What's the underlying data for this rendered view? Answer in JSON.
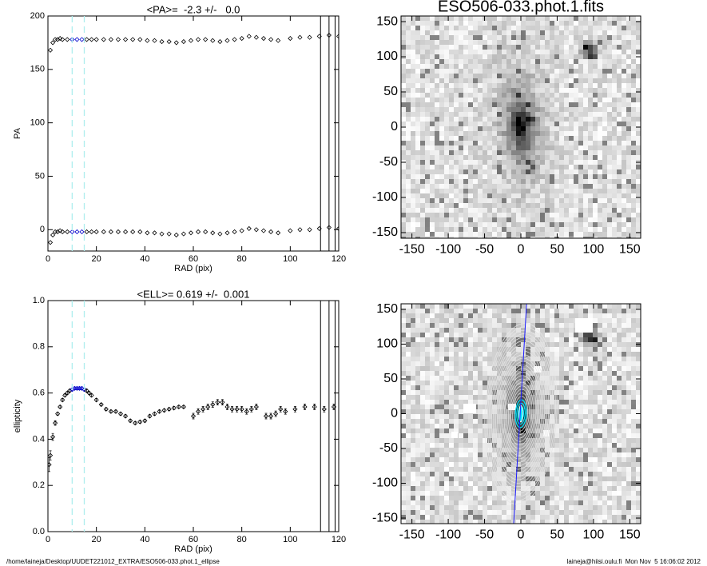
{
  "chart_data": [
    {
      "type": "scatter",
      "title": "<PA>=  -2.3 +/-   0.0",
      "xlabel": "RAD (pix)",
      "ylabel": "PA",
      "xlim": [
        0,
        120
      ],
      "ylim": [
        -20,
        200
      ],
      "xticks": [
        0,
        20,
        40,
        60,
        80,
        100,
        120
      ],
      "yticks": [
        0,
        50,
        100,
        150,
        200
      ],
      "x": [
        1,
        2,
        3,
        4,
        5,
        6,
        8,
        10,
        12,
        14,
        16,
        18,
        20,
        23,
        26,
        29,
        32,
        35,
        38,
        41,
        44,
        47,
        50,
        53,
        56,
        59,
        62,
        65,
        68,
        71,
        74,
        77,
        80,
        83,
        86,
        89,
        92,
        95,
        100,
        104,
        108,
        112,
        116,
        120
      ],
      "series": [
        {
          "color": "#000000",
          "values": [
            168,
            175,
            178,
            178,
            179,
            178,
            178,
            178,
            178,
            178,
            178,
            178,
            178,
            178,
            178,
            178,
            178,
            178,
            178,
            177,
            177,
            176,
            176,
            175,
            176,
            177,
            178,
            178,
            177,
            176,
            177,
            178,
            179,
            181,
            180,
            179,
            178,
            177,
            179,
            180,
            180,
            181,
            182,
            181
          ]
        },
        {
          "color": "#000000",
          "values": [
            -12,
            -5,
            -2,
            -2,
            -1,
            -2,
            -2,
            -2,
            -2,
            -2,
            -2,
            -2,
            -2,
            -2,
            -2,
            -2,
            -2,
            -2,
            -2,
            -3,
            -3,
            -4,
            -4,
            -5,
            -4,
            -3,
            -2,
            -2,
            -3,
            -4,
            -3,
            -2,
            -1,
            1,
            0,
            -1,
            -2,
            -3,
            -1,
            0,
            0,
            1,
            2,
            1
          ]
        }
      ],
      "vlines": {
        "dashed": [
          10,
          15
        ],
        "dashed_color": "#aeeeee",
        "solid": [
          112.5,
          116,
          118.5
        ],
        "solid_color": "#000000"
      },
      "highlight_color": "#0000cc"
    },
    {
      "type": "scatter",
      "title": "<ELL>= 0.619 +/-  0.001",
      "xlabel": "RAD (pix)",
      "ylabel": "ellipticity",
      "xlim": [
        0,
        120
      ],
      "ylim": [
        0,
        1
      ],
      "xticks": [
        0,
        20,
        40,
        60,
        80,
        100,
        120
      ],
      "yticks": [
        {
          "value": 0,
          "label": "0.0"
        },
        0.2,
        0.4,
        0.6,
        0.8,
        {
          "value": 1,
          "label": "1.0"
        }
      ],
      "x": [
        0.5,
        1,
        2,
        3,
        4,
        5,
        6,
        7,
        8,
        9,
        10,
        11,
        12,
        13,
        14,
        15,
        16,
        17,
        18,
        20,
        22,
        24,
        26,
        28,
        30,
        32,
        34,
        36,
        38,
        40,
        42,
        44,
        46,
        48,
        50,
        52,
        54,
        56,
        60,
        62,
        64,
        66,
        68,
        70,
        72,
        74,
        76,
        78,
        80,
        82,
        84,
        86,
        90,
        92,
        94,
        96,
        98,
        102,
        106,
        110,
        114,
        118
      ],
      "series": [
        {
          "color": "#000000",
          "values": [
            0.29,
            0.33,
            0.41,
            0.47,
            0.51,
            0.54,
            0.57,
            0.59,
            0.6,
            0.61,
            0.615,
            0.62,
            0.62,
            0.62,
            0.62,
            0.615,
            0.61,
            0.6,
            0.59,
            0.57,
            0.55,
            0.53,
            0.52,
            0.52,
            0.51,
            0.5,
            0.48,
            0.47,
            0.475,
            0.48,
            0.5,
            0.51,
            0.52,
            0.525,
            0.53,
            0.535,
            0.54,
            0.54,
            0.5,
            0.52,
            0.53,
            0.54,
            0.55,
            0.56,
            0.56,
            0.54,
            0.53,
            0.53,
            0.53,
            0.52,
            0.53,
            0.54,
            0.5,
            0.5,
            0.51,
            0.53,
            0.52,
            0.53,
            0.54,
            0.54,
            0.53,
            0.54
          ],
          "errors": [
            0.03,
            0.02,
            0.015,
            0.01,
            0.006,
            0.006,
            0.006,
            0.006,
            0.006,
            0.006,
            0.006,
            0.006,
            0.006,
            0.006,
            0.006,
            0.006,
            0.006,
            0.006,
            0.006,
            0.006,
            0.006,
            0.006,
            0.006,
            0.006,
            0.006,
            0.006,
            0.006,
            0.006,
            0.006,
            0.006,
            0.006,
            0.006,
            0.006,
            0.006,
            0.006,
            0.006,
            0.006,
            0.006,
            0.012,
            0.012,
            0.012,
            0.012,
            0.012,
            0.012,
            0.012,
            0.012,
            0.012,
            0.012,
            0.012,
            0.012,
            0.012,
            0.012,
            0.012,
            0.012,
            0.012,
            0.012,
            0.012,
            0.012,
            0.012,
            0.012,
            0.012,
            0.012
          ]
        }
      ],
      "vlines": {
        "dashed": [
          10,
          15
        ],
        "dashed_color": "#aeeeee",
        "solid": [
          112.5,
          116,
          118.5
        ],
        "solid_color": "#000000"
      },
      "highlight_color": "#0000cc"
    },
    {
      "type": "image",
      "title": "ESO506-033.phot.1.fits",
      "xlim": [
        -165,
        165
      ],
      "ylim": [
        -158,
        158
      ],
      "xticks": [
        -150,
        -100,
        -50,
        0,
        50,
        100,
        150
      ],
      "yticks": [
        -150,
        -100,
        -50,
        0,
        50,
        100,
        150
      ],
      "contours": false
    },
    {
      "type": "image",
      "xlim": [
        -165,
        165
      ],
      "ylim": [
        -158,
        158
      ],
      "xticks": [
        -150,
        -100,
        -50,
        0,
        50,
        100,
        150
      ],
      "yticks": [
        -150,
        -100,
        -50,
        0,
        50,
        100,
        150
      ],
      "contours": true
    }
  ],
  "footer": {
    "left": "/home/laineja/Desktop/UUDET221012_EXTRA/ESO506-033.phot.1_ellipse",
    "right": "laineja@hiisi.oulu.fi  Mon Nov  5 16:06:02 2012"
  }
}
